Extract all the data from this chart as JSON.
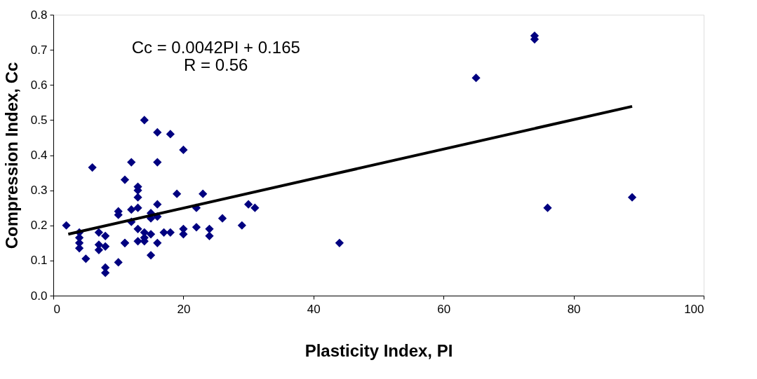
{
  "chart_data": {
    "type": "scatter",
    "xlabel": "Plasticity Index, PI",
    "ylabel": "Compression Index, Cc",
    "annotations": [
      "Cc = 0.0042PI + 0.165",
      "R = 0.56"
    ],
    "xlim": [
      0,
      100
    ],
    "xticks": [
      0,
      20,
      40,
      60,
      80,
      100
    ],
    "ylim": [
      0,
      0.8
    ],
    "yticks": [
      {
        "value": 0,
        "label": "0.0"
      },
      0.1,
      0.2,
      0.3,
      0.4,
      0.5,
      0.6,
      0.7,
      0.8
    ],
    "grid": false,
    "legend": false,
    "series": [
      {
        "marker": "diamond",
        "color": "#000080",
        "x": [
          2,
          4,
          4,
          4,
          4,
          5,
          6,
          7,
          7,
          7,
          8,
          8,
          8,
          8,
          10,
          10,
          10,
          11,
          11,
          11,
          12,
          12,
          12,
          13,
          13,
          13,
          13,
          13,
          13,
          14,
          14,
          14,
          14,
          15,
          15,
          15,
          15,
          16,
          16,
          16,
          16,
          16,
          17,
          18,
          18,
          19,
          20,
          20,
          20,
          22,
          22,
          23,
          24,
          24,
          26,
          29,
          30,
          31,
          44,
          65,
          74,
          74,
          76,
          89
        ],
        "values": [
          0.2,
          0.18,
          0.165,
          0.15,
          0.135,
          0.105,
          0.365,
          0.18,
          0.145,
          0.13,
          0.17,
          0.14,
          0.08,
          0.065,
          0.095,
          0.23,
          0.24,
          0.33,
          0.15,
          0.15,
          0.38,
          0.245,
          0.21,
          0.31,
          0.3,
          0.28,
          0.25,
          0.19,
          0.155,
          0.5,
          0.18,
          0.165,
          0.155,
          0.235,
          0.22,
          0.175,
          0.115,
          0.465,
          0.38,
          0.26,
          0.225,
          0.15,
          0.18,
          0.46,
          0.18,
          0.29,
          0.415,
          0.19,
          0.175,
          0.25,
          0.195,
          0.29,
          0.19,
          0.17,
          0.22,
          0.2,
          0.26,
          0.25,
          0.15,
          0.62,
          0.74,
          0.73,
          0.25,
          0.28
        ]
      },
      {
        "type": "line",
        "color": "#000000",
        "x": [
          2.3,
          89
        ],
        "values": [
          0.175,
          0.539
        ]
      }
    ]
  }
}
